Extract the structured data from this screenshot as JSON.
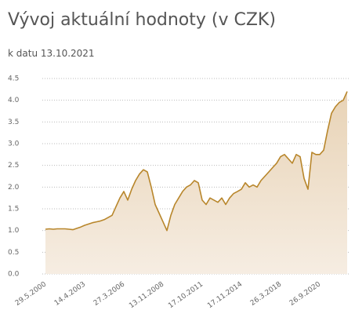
{
  "chart_data": {
    "type": "area",
    "title": "Vývoj aktuální hodnoty (v CZK)",
    "subtitle": "k datu 13.10.2021",
    "categories": [
      "29.5.2000",
      null,
      null,
      null,
      null,
      null,
      null,
      null,
      null,
      null,
      "14.4.2003",
      null,
      null,
      null,
      null,
      null,
      null,
      null,
      null,
      null,
      "27.3.2006",
      null,
      null,
      null,
      null,
      null,
      null,
      null,
      null,
      null,
      "13.11.2008",
      null,
      null,
      null,
      null,
      null,
      null,
      null,
      null,
      null,
      "17.10.2011",
      null,
      null,
      null,
      null,
      null,
      null,
      null,
      null,
      null,
      "17.11.2014",
      null,
      null,
      null,
      null,
      null,
      null,
      null,
      null,
      null,
      "26.3.2018",
      null,
      null,
      null,
      null,
      null,
      null,
      null,
      null,
      null,
      "26.9.2020",
      null,
      null,
      null,
      null,
      null,
      null,
      null
    ],
    "values": [
      1.03,
      1.04,
      1.03,
      1.04,
      1.04,
      1.04,
      1.03,
      1.02,
      1.05,
      1.08,
      1.12,
      1.15,
      1.18,
      1.2,
      1.22,
      1.25,
      1.3,
      1.35,
      1.55,
      1.75,
      1.9,
      1.7,
      1.95,
      2.15,
      2.3,
      2.4,
      2.35,
      2.0,
      1.6,
      1.4,
      1.2,
      1.0,
      1.35,
      1.6,
      1.75,
      1.9,
      2.0,
      2.05,
      2.15,
      2.1,
      1.7,
      1.6,
      1.75,
      1.7,
      1.65,
      1.75,
      1.6,
      1.75,
      1.85,
      1.9,
      1.95,
      2.1,
      2.0,
      2.05,
      2.0,
      2.15,
      2.25,
      2.35,
      2.45,
      2.55,
      2.7,
      2.75,
      2.65,
      2.55,
      2.75,
      2.7,
      2.2,
      1.95,
      2.8,
      2.75,
      2.75,
      2.85,
      3.3,
      3.7,
      3.85,
      3.95,
      4.0,
      4.2
    ],
    "color": "#b8862b",
    "ylim": [
      0,
      4.5
    ],
    "yticks": [
      {
        "value": 0,
        "label": "0.0"
      },
      0.5,
      {
        "value": 1,
        "label": "1.0"
      },
      1.5,
      {
        "value": 2,
        "label": "2.0"
      },
      2.5,
      {
        "value": 3,
        "label": "3.0"
      },
      3.5,
      {
        "value": 4,
        "label": "4.0"
      },
      4.5
    ],
    "grid": true
  }
}
